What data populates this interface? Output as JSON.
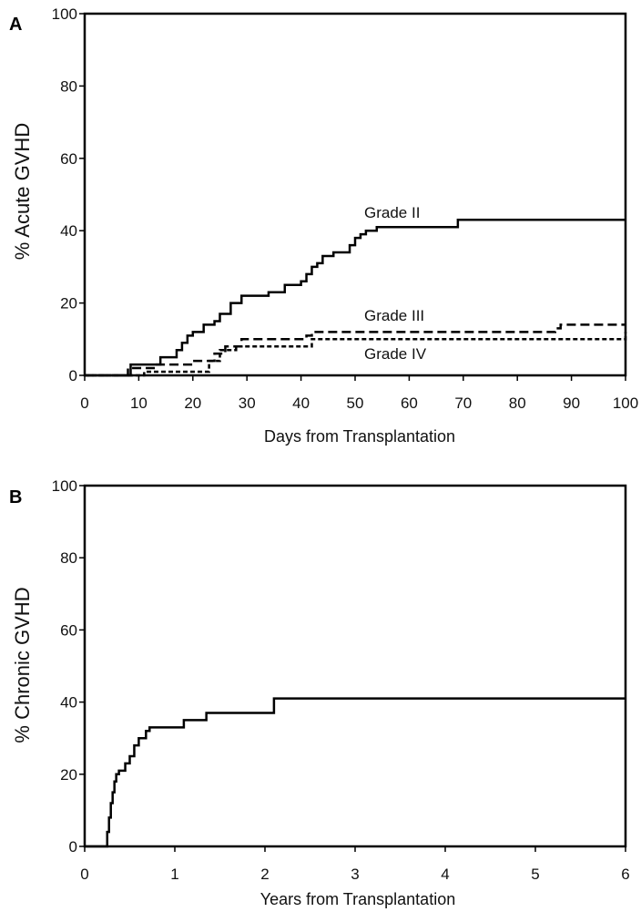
{
  "chart_data": [
    {
      "panel": "A",
      "type": "line",
      "step": true,
      "xlabel": "Days from Transplantation",
      "ylabel": "% Acute GVHD",
      "xlim": [
        0,
        100
      ],
      "ylim": [
        0,
        100
      ],
      "xticks": [
        0,
        10,
        20,
        30,
        40,
        50,
        60,
        70,
        80,
        90,
        100
      ],
      "yticks": [
        0,
        20,
        40,
        60,
        80,
        100
      ],
      "grid": false,
      "series": [
        {
          "name": "Grade II",
          "style": "solid",
          "x": [
            0,
            8.5,
            12,
            14,
            17,
            18,
            19,
            20,
            22,
            24,
            25,
            27,
            29,
            34,
            37,
            40,
            41,
            42,
            43,
            44,
            46,
            49,
            50,
            51,
            52,
            54,
            58,
            69,
            100
          ],
          "y": [
            0,
            3,
            3,
            5,
            7,
            9,
            11,
            12,
            14,
            15,
            17,
            20,
            22,
            23,
            25,
            26,
            28,
            30,
            31,
            33,
            34,
            36,
            38,
            39,
            40,
            41,
            41,
            43,
            43
          ]
        },
        {
          "name": "Grade III",
          "style": "dashed",
          "x": [
            0,
            8,
            13,
            20,
            24,
            26,
            29,
            41,
            42,
            75,
            87,
            88,
            100
          ],
          "y": [
            0,
            2,
            3,
            4,
            6,
            8,
            10,
            11,
            12,
            12,
            13,
            14,
            14
          ]
        },
        {
          "name": "Grade IV",
          "style": "dotted",
          "x": [
            0,
            10,
            11,
            22,
            23,
            25,
            28,
            42,
            100
          ],
          "y": [
            0,
            0,
            1,
            1,
            4,
            7,
            8,
            10,
            12
          ]
        }
      ],
      "annotations": [
        "Grade II",
        "Grade III",
        "Grade IV"
      ]
    },
    {
      "panel": "B",
      "type": "line",
      "step": true,
      "xlabel": "Years from Transplantation",
      "ylabel": "% Chronic GVHD",
      "xlim": [
        0,
        6
      ],
      "ylim": [
        0,
        100
      ],
      "xticks": [
        0,
        1,
        2,
        3,
        4,
        5,
        6
      ],
      "yticks": [
        0,
        20,
        40,
        60,
        80,
        100
      ],
      "grid": false,
      "series": [
        {
          "style": "solid",
          "x": [
            0,
            0.25,
            0.27,
            0.29,
            0.31,
            0.33,
            0.35,
            0.38,
            0.45,
            0.5,
            0.55,
            0.6,
            0.68,
            0.72,
            1.1,
            1.35,
            2.1,
            6
          ],
          "y": [
            0,
            4,
            8,
            12,
            15,
            18,
            20,
            21,
            23,
            25,
            28,
            30,
            32,
            33,
            35,
            37,
            41,
            41
          ]
        }
      ]
    }
  ]
}
